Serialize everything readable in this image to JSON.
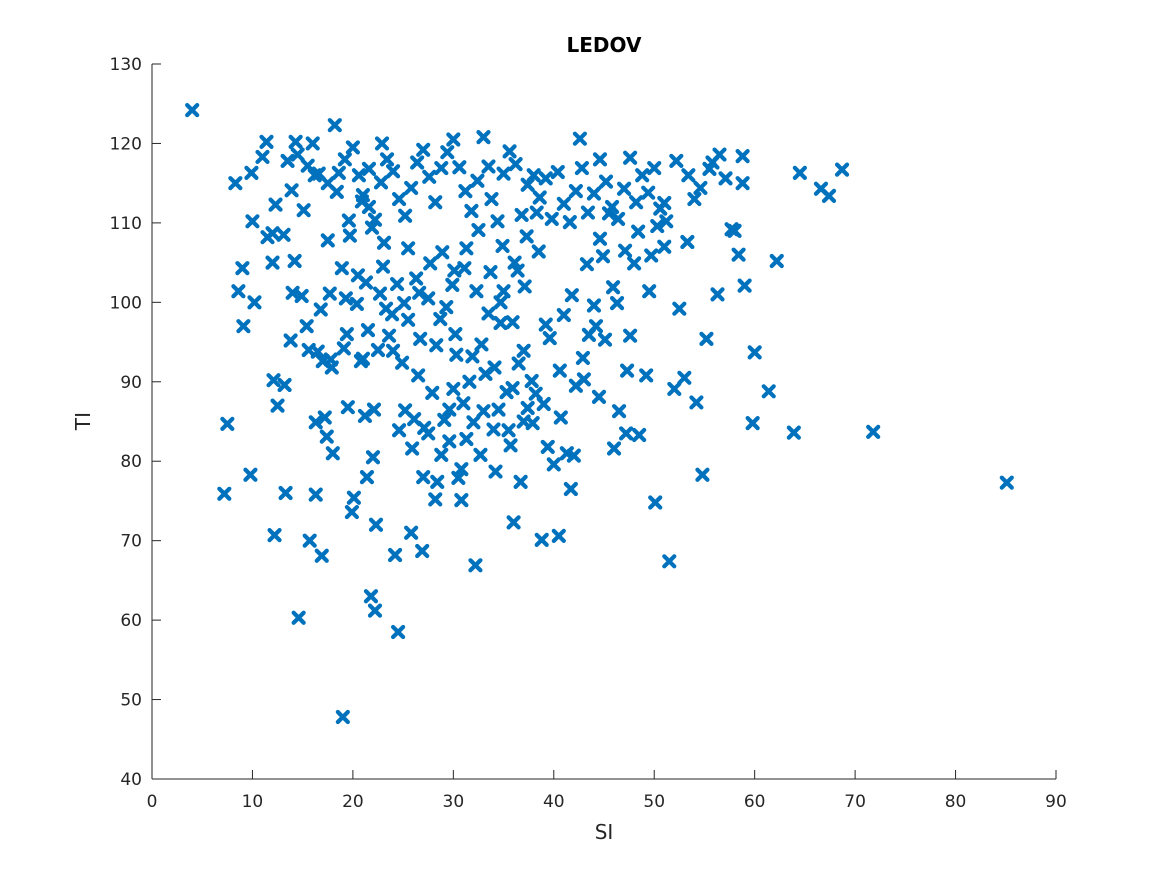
{
  "chart_data": {
    "type": "scatter",
    "title": "LEDOV",
    "xlabel": "SI",
    "ylabel": "TI",
    "xlim": [
      0,
      90
    ],
    "ylim": [
      40,
      130
    ],
    "xticks": [
      0,
      10,
      20,
      30,
      40,
      50,
      60,
      70,
      80,
      90
    ],
    "yticks": [
      40,
      50,
      60,
      70,
      80,
      90,
      100,
      110,
      120,
      130
    ],
    "grid": false,
    "marker": "x",
    "marker_color": "#0072BD",
    "points": [
      [
        4.0,
        124.2
      ],
      [
        7.2,
        75.9
      ],
      [
        7.5,
        84.7
      ],
      [
        8.3,
        115.0
      ],
      [
        8.6,
        101.4
      ],
      [
        9.0,
        104.3
      ],
      [
        9.1,
        97.0
      ],
      [
        9.8,
        78.3
      ],
      [
        9.9,
        116.3
      ],
      [
        10.0,
        110.2
      ],
      [
        10.2,
        100.0
      ],
      [
        11.0,
        118.3
      ],
      [
        11.4,
        120.2
      ],
      [
        11.5,
        108.2
      ],
      [
        12.0,
        105.0
      ],
      [
        12.1,
        90.2
      ],
      [
        12.2,
        70.7
      ],
      [
        12.3,
        112.3
      ],
      [
        12.5,
        87.0
      ],
      [
        13.1,
        108.5
      ],
      [
        13.2,
        89.6
      ],
      [
        13.3,
        76.0
      ],
      [
        13.5,
        117.8
      ],
      [
        13.9,
        114.1
      ],
      [
        14.0,
        101.2
      ],
      [
        14.2,
        105.2
      ],
      [
        14.3,
        120.2
      ],
      [
        14.6,
        60.3
      ],
      [
        14.9,
        100.8
      ],
      [
        15.1,
        111.6
      ],
      [
        15.4,
        97.0
      ],
      [
        15.6,
        94.0
      ],
      [
        15.7,
        70.0
      ],
      [
        16.0,
        120.0
      ],
      [
        16.2,
        116.0
      ],
      [
        16.3,
        84.9
      ],
      [
        16.3,
        75.8
      ],
      [
        16.5,
        93.8
      ],
      [
        16.9,
        68.1
      ],
      [
        17.0,
        92.6
      ],
      [
        17.2,
        85.5
      ],
      [
        17.4,
        83.1
      ],
      [
        17.5,
        107.8
      ],
      [
        17.7,
        101.1
      ],
      [
        17.9,
        91.8
      ],
      [
        18.0,
        81.0
      ],
      [
        18.2,
        122.3
      ],
      [
        18.6,
        116.3
      ],
      [
        19.0,
        47.8
      ],
      [
        19.1,
        94.2
      ],
      [
        19.3,
        100.5
      ],
      [
        19.4,
        96.0
      ],
      [
        19.5,
        86.8
      ],
      [
        19.7,
        108.4
      ],
      [
        19.9,
        73.6
      ],
      [
        20.1,
        75.4
      ],
      [
        20.5,
        103.4
      ],
      [
        21.0,
        92.9
      ],
      [
        21.2,
        85.7
      ],
      [
        21.4,
        78.0
      ],
      [
        21.6,
        116.8
      ],
      [
        21.8,
        63.0
      ],
      [
        22.0,
        80.5
      ],
      [
        22.2,
        61.2
      ],
      [
        22.3,
        72.0
      ],
      [
        22.5,
        94.0
      ],
      [
        22.9,
        120.0
      ],
      [
        23.1,
        107.5
      ],
      [
        23.3,
        99.2
      ],
      [
        24.0,
        93.9
      ],
      [
        24.2,
        68.2
      ],
      [
        24.5,
        58.5
      ],
      [
        24.6,
        83.9
      ],
      [
        25.2,
        86.4
      ],
      [
        25.5,
        97.8
      ],
      [
        25.8,
        71.0
      ],
      [
        26.1,
        85.3
      ],
      [
        26.5,
        90.8
      ],
      [
        26.9,
        68.7
      ],
      [
        27.0,
        78.0
      ],
      [
        27.5,
        83.5
      ],
      [
        28.2,
        75.2
      ],
      [
        28.3,
        94.6
      ],
      [
        28.8,
        80.8
      ],
      [
        29.3,
        99.4
      ],
      [
        29.6,
        86.5
      ],
      [
        30.0,
        89.1
      ],
      [
        30.2,
        96.0
      ],
      [
        30.5,
        77.9
      ],
      [
        30.8,
        75.1
      ],
      [
        31.0,
        87.3
      ],
      [
        31.3,
        82.8
      ],
      [
        31.9,
        93.2
      ],
      [
        32.2,
        66.9
      ],
      [
        32.7,
        80.8
      ],
      [
        33.0,
        86.3
      ],
      [
        33.5,
        117.1
      ],
      [
        34.0,
        84.0
      ],
      [
        34.2,
        78.7
      ],
      [
        34.7,
        97.4
      ],
      [
        35.0,
        101.4
      ],
      [
        35.5,
        83.9
      ],
      [
        35.9,
        89.2
      ],
      [
        36.0,
        72.3
      ],
      [
        36.4,
        104.0
      ],
      [
        36.7,
        77.4
      ],
      [
        37.0,
        93.9
      ],
      [
        37.4,
        86.7
      ],
      [
        37.9,
        84.8
      ],
      [
        38.3,
        111.3
      ],
      [
        38.8,
        70.1
      ],
      [
        39.2,
        97.2
      ],
      [
        39.6,
        95.5
      ],
      [
        40.0,
        79.6
      ],
      [
        40.5,
        70.6
      ],
      [
        41.0,
        98.4
      ],
      [
        41.3,
        81.0
      ],
      [
        41.7,
        76.5
      ],
      [
        42.2,
        89.5
      ],
      [
        42.6,
        120.6
      ],
      [
        43.0,
        90.3
      ],
      [
        43.5,
        95.9
      ],
      [
        44.2,
        97.0
      ],
      [
        44.5,
        88.1
      ],
      [
        44.9,
        105.8
      ],
      [
        45.5,
        111.2
      ],
      [
        46.0,
        81.6
      ],
      [
        46.5,
        86.3
      ],
      [
        47.2,
        83.5
      ],
      [
        47.6,
        95.8
      ],
      [
        48.0,
        104.9
      ],
      [
        48.5,
        83.3
      ],
      [
        49.2,
        90.8
      ],
      [
        49.5,
        101.4
      ],
      [
        50.1,
        74.8
      ],
      [
        50.3,
        109.6
      ],
      [
        51.0,
        112.5
      ],
      [
        51.5,
        67.4
      ],
      [
        52.0,
        89.1
      ],
      [
        52.5,
        99.2
      ],
      [
        53.0,
        90.5
      ],
      [
        53.3,
        107.6
      ],
      [
        54.0,
        113.0
      ],
      [
        54.2,
        87.4
      ],
      [
        54.8,
        78.3
      ],
      [
        55.2,
        95.4
      ],
      [
        55.5,
        116.8
      ],
      [
        56.3,
        101.0
      ],
      [
        57.1,
        115.6
      ],
      [
        57.7,
        109.2
      ],
      [
        58.4,
        106.0
      ],
      [
        58.8,
        115.0
      ],
      [
        59.0,
        102.1
      ],
      [
        59.8,
        84.8
      ],
      [
        60.0,
        93.7
      ],
      [
        61.4,
        88.8
      ],
      [
        62.2,
        105.2
      ],
      [
        63.9,
        83.6
      ],
      [
        64.5,
        116.3
      ],
      [
        66.6,
        114.3
      ],
      [
        67.4,
        113.4
      ],
      [
        68.7,
        116.7
      ],
      [
        71.8,
        83.7
      ],
      [
        85.1,
        77.3
      ],
      [
        17.5,
        115.0
      ],
      [
        18.4,
        113.9
      ],
      [
        19.2,
        118.0
      ],
      [
        20.0,
        119.5
      ],
      [
        20.6,
        116.0
      ],
      [
        21.0,
        113.5
      ],
      [
        21.6,
        112.0
      ],
      [
        22.2,
        110.4
      ],
      [
        22.8,
        115.1
      ],
      [
        23.4,
        118.0
      ],
      [
        24.0,
        116.5
      ],
      [
        24.6,
        113.0
      ],
      [
        25.2,
        110.9
      ],
      [
        25.8,
        114.4
      ],
      [
        26.4,
        117.6
      ],
      [
        27.0,
        119.2
      ],
      [
        27.6,
        115.8
      ],
      [
        28.2,
        112.6
      ],
      [
        28.8,
        116.9
      ],
      [
        29.4,
        118.9
      ],
      [
        30.0,
        120.5
      ],
      [
        30.6,
        117.0
      ],
      [
        31.2,
        114.0
      ],
      [
        31.8,
        111.5
      ],
      [
        32.4,
        115.3
      ],
      [
        33.0,
        120.8
      ],
      [
        33.8,
        113.0
      ],
      [
        34.4,
        110.2
      ],
      [
        35.0,
        116.2
      ],
      [
        35.6,
        119.0
      ],
      [
        36.2,
        117.4
      ],
      [
        36.8,
        111.0
      ],
      [
        37.4,
        114.8
      ],
      [
        38.0,
        116.0
      ],
      [
        38.6,
        113.2
      ],
      [
        39.2,
        115.6
      ],
      [
        39.8,
        110.5
      ],
      [
        40.4,
        116.4
      ],
      [
        41.0,
        112.4
      ],
      [
        41.6,
        110.1
      ],
      [
        42.2,
        114.0
      ],
      [
        42.8,
        116.9
      ],
      [
        43.4,
        111.3
      ],
      [
        44.0,
        113.7
      ],
      [
        44.6,
        118.0
      ],
      [
        45.2,
        115.2
      ],
      [
        45.8,
        112.0
      ],
      [
        46.4,
        110.5
      ],
      [
        47.0,
        114.3
      ],
      [
        47.6,
        118.2
      ],
      [
        48.2,
        112.6
      ],
      [
        48.8,
        116.0
      ],
      [
        49.4,
        113.8
      ],
      [
        50.0,
        116.9
      ],
      [
        50.6,
        111.8
      ],
      [
        51.2,
        110.2
      ],
      [
        21.9,
        109.4
      ],
      [
        23.0,
        104.5
      ],
      [
        24.4,
        102.3
      ],
      [
        25.5,
        106.8
      ],
      [
        26.6,
        101.2
      ],
      [
        27.7,
        104.9
      ],
      [
        28.9,
        106.3
      ],
      [
        30.1,
        104.0
      ],
      [
        31.3,
        106.8
      ],
      [
        32.5,
        109.1
      ],
      [
        33.7,
        103.8
      ],
      [
        34.9,
        107.1
      ],
      [
        36.1,
        105.0
      ],
      [
        37.3,
        108.3
      ],
      [
        38.5,
        106.4
      ],
      [
        20.4,
        99.8
      ],
      [
        21.5,
        96.5
      ],
      [
        22.7,
        101.1
      ],
      [
        23.9,
        98.5
      ],
      [
        25.1,
        99.9
      ],
      [
        26.3,
        103.0
      ],
      [
        27.5,
        100.5
      ],
      [
        28.7,
        97.9
      ],
      [
        29.9,
        102.2
      ],
      [
        31.1,
        104.3
      ],
      [
        32.3,
        101.4
      ],
      [
        33.5,
        98.6
      ],
      [
        34.7,
        100.0
      ],
      [
        35.9,
        97.5
      ],
      [
        37.1,
        102.0
      ],
      [
        14.5,
        118.6
      ],
      [
        15.5,
        117.2
      ],
      [
        16.6,
        116.2
      ],
      [
        19.6,
        110.3
      ],
      [
        20.9,
        112.7
      ],
      [
        12.0,
        108.7
      ],
      [
        13.8,
        95.2
      ],
      [
        16.8,
        99.1
      ],
      [
        17.8,
        92.8
      ],
      [
        18.9,
        104.3
      ],
      [
        20.8,
        92.6
      ],
      [
        21.3,
        102.5
      ],
      [
        22.1,
        86.5
      ],
      [
        23.6,
        95.8
      ],
      [
        24.9,
        92.4
      ],
      [
        26.7,
        95.4
      ],
      [
        27.9,
        88.6
      ],
      [
        29.1,
        85.2
      ],
      [
        30.3,
        93.4
      ],
      [
        31.6,
        90.0
      ],
      [
        32.8,
        94.7
      ],
      [
        34.1,
        91.8
      ],
      [
        35.3,
        88.7
      ],
      [
        36.5,
        92.3
      ],
      [
        37.8,
        90.1
      ],
      [
        39.0,
        87.2
      ],
      [
        40.6,
        91.4
      ],
      [
        41.8,
        100.9
      ],
      [
        42.9,
        93.0
      ],
      [
        44.0,
        99.6
      ],
      [
        45.1,
        95.3
      ],
      [
        46.3,
        99.9
      ],
      [
        47.3,
        91.4
      ],
      [
        25.9,
        81.6
      ],
      [
        27.1,
        84.2
      ],
      [
        28.4,
        77.4
      ],
      [
        29.6,
        82.5
      ],
      [
        30.8,
        79.0
      ],
      [
        32.0,
        84.9
      ],
      [
        33.2,
        91.0
      ],
      [
        34.5,
        86.5
      ],
      [
        35.7,
        82.0
      ],
      [
        37.0,
        85.0
      ],
      [
        38.2,
        88.5
      ],
      [
        39.4,
        81.8
      ],
      [
        40.7,
        85.5
      ],
      [
        42.0,
        80.7
      ],
      [
        43.3,
        104.8
      ],
      [
        44.6,
        108.0
      ],
      [
        45.9,
        101.9
      ],
      [
        47.1,
        106.5
      ],
      [
        48.4,
        108.9
      ],
      [
        49.7,
        105.9
      ],
      [
        51.0,
        107.0
      ],
      [
        52.2,
        117.8
      ],
      [
        53.4,
        116.0
      ],
      [
        54.6,
        114.4
      ],
      [
        55.8,
        117.6
      ],
      [
        56.5,
        118.6
      ],
      [
        58.0,
        109.0
      ],
      [
        58.8,
        118.4
      ]
    ]
  }
}
